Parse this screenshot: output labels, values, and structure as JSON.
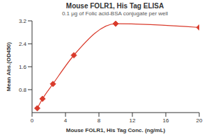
{
  "chart_data": {
    "type": "line",
    "title": "Mouse FOLR1, His Tag ELISA",
    "subtitle": "0.1 μg of Folic acid-BSA conjugate per well",
    "x_label": "Mouse FOLR1, His Tag Conc. (ng/mL)",
    "y_label": "Mean Abs.(OD450)",
    "x": [
      0.625,
      1.25,
      2.5,
      5,
      10,
      20
    ],
    "values": [
      0.15,
      0.48,
      1.0,
      2.0,
      3.1,
      2.97
    ],
    "color": "#d93a2b",
    "xlim": [
      0,
      20
    ],
    "xticks": [
      0,
      4,
      8,
      12,
      16,
      20
    ],
    "ylim": [
      0,
      3.2
    ],
    "yticks": [
      0.8,
      1.6,
      2.4,
      3.2
    ],
    "marker": "diamond",
    "line_style": "solid",
    "grid": false
  }
}
